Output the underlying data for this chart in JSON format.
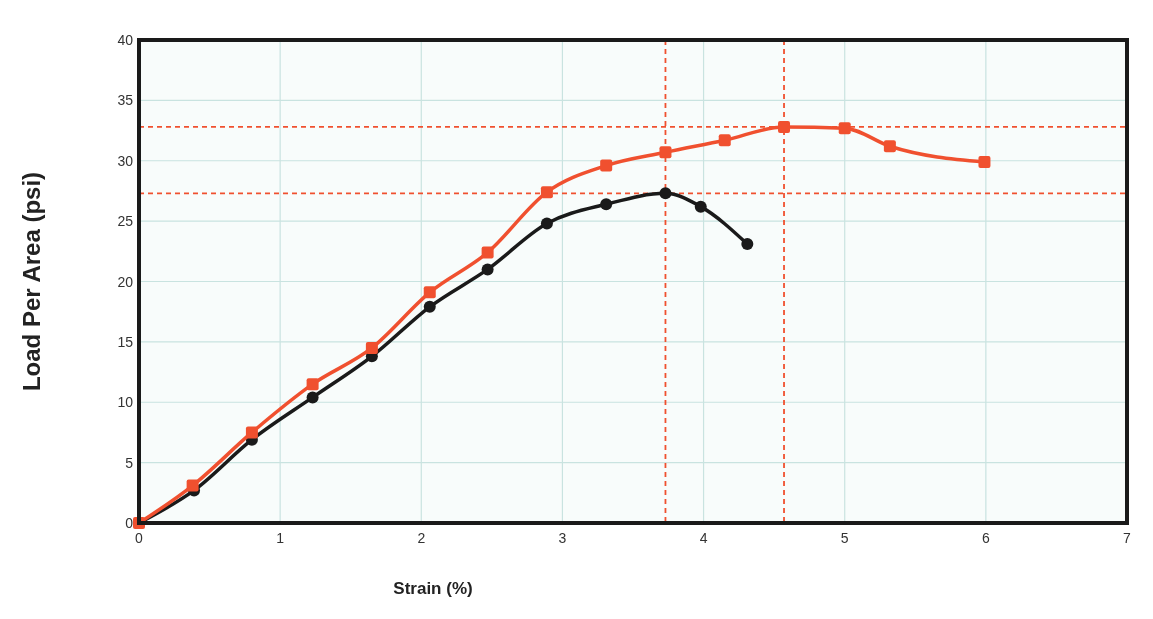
{
  "chart_data": {
    "type": "line",
    "xlabel": "Strain (%)",
    "ylabel": "Load Per Area (psi)",
    "xlim": [
      0,
      7
    ],
    "xticks": [
      0,
      1,
      2,
      3,
      4,
      5,
      6,
      7
    ],
    "ylim": [
      0,
      40
    ],
    "yticks": [
      0,
      5,
      10,
      15,
      20,
      25,
      30,
      35,
      40
    ],
    "grid": true,
    "line_style": "solid",
    "series": [
      {
        "color": "#f0502f",
        "marker": "square",
        "x": [
          0,
          0.38,
          0.8,
          1.23,
          1.65,
          2.06,
          2.47,
          2.89,
          3.31,
          3.73,
          4.15,
          4.57,
          5.0,
          5.32,
          5.99
        ],
        "values": [
          0,
          3.1,
          7.5,
          11.5,
          14.5,
          19.1,
          22.4,
          27.4,
          29.6,
          30.7,
          31.7,
          32.8,
          32.7,
          31.2,
          29.9
        ]
      },
      {
        "color": "#1a1a1a",
        "marker": "circle",
        "x": [
          0,
          0.39,
          0.8,
          1.23,
          1.65,
          2.06,
          2.47,
          2.89,
          3.31,
          3.73,
          3.98,
          4.31
        ],
        "values": [
          0,
          2.7,
          6.9,
          10.4,
          13.8,
          17.9,
          21,
          24.8,
          26.4,
          27.3,
          26.2,
          23.1
        ]
      }
    ],
    "ref_lines": [
      {
        "axis": "y",
        "value": 32.8,
        "color": "#f0502f",
        "line_style": "dashed"
      },
      {
        "axis": "y",
        "value": 27.3,
        "color": "#f0502f",
        "line_style": "dashed"
      },
      {
        "axis": "x",
        "value": 3.73,
        "color": "#f0502f",
        "line_style": "dashed"
      },
      {
        "axis": "x",
        "value": 4.57,
        "color": "#f0502f",
        "line_style": "dashed"
      }
    ]
  }
}
